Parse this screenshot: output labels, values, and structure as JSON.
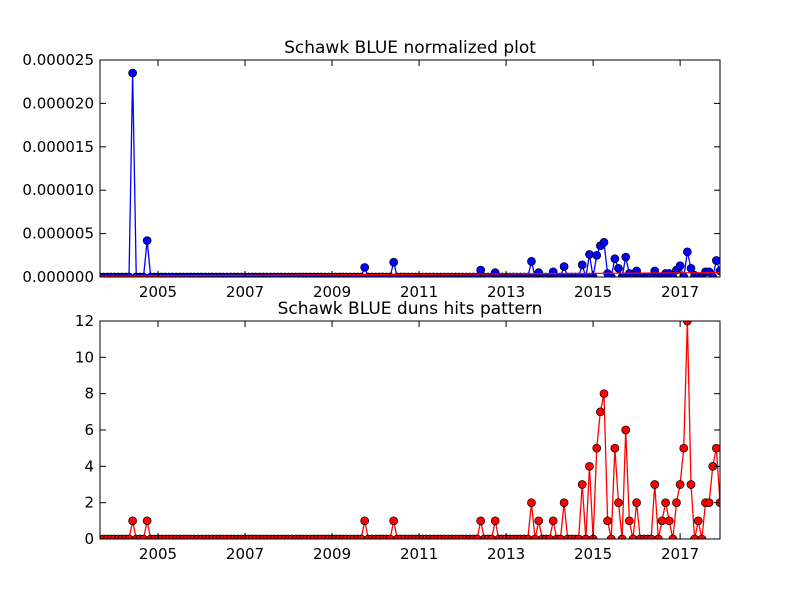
{
  "chart_data": [
    {
      "type": "line",
      "title": "Schawk BLUE normalized plot",
      "xlabel": "",
      "ylabel": "",
      "xlim": [
        "2003-09-01",
        "2017-12-01"
      ],
      "ylim": [
        0,
        2.5e-05
      ],
      "x_ticks": [
        "2005",
        "2007",
        "2009",
        "2011",
        "2013",
        "2015",
        "2017"
      ],
      "y_ticks": [
        "0.000000",
        "0.000005",
        "0.000010",
        "0.000015",
        "0.000020",
        "0.000025"
      ],
      "grid": false,
      "series": [
        {
          "style": "line-with-markers",
          "color": "#0000ff",
          "marker_color": "#0000ff",
          "points": [
            {
              "x": "2004-06-01",
              "y": 2.35e-05
            },
            {
              "x": "2004-10-01",
              "y": 4.2e-06
            },
            {
              "x": "2009-10-01",
              "y": 1.1e-06
            },
            {
              "x": "2010-06-01",
              "y": 1.7e-06
            },
            {
              "x": "2012-06-01",
              "y": 8e-07
            },
            {
              "x": "2012-10-01",
              "y": 5e-07
            },
            {
              "x": "2013-08-01",
              "y": 1.8e-06
            },
            {
              "x": "2013-10-01",
              "y": 5e-07
            },
            {
              "x": "2014-02-01",
              "y": 6e-07
            },
            {
              "x": "2014-05-01",
              "y": 1.2e-06
            },
            {
              "x": "2014-10-01",
              "y": 1.4e-06
            },
            {
              "x": "2014-12-01",
              "y": 2.6e-06
            },
            {
              "x": "2015-02-01",
              "y": 2.5e-06
            },
            {
              "x": "2015-03-01",
              "y": 3.6e-06
            },
            {
              "x": "2015-04-01",
              "y": 4e-06
            },
            {
              "x": "2015-05-01",
              "y": 4e-07
            },
            {
              "x": "2015-07-01",
              "y": 2.1e-06
            },
            {
              "x": "2015-08-01",
              "y": 1e-06
            },
            {
              "x": "2015-10-01",
              "y": 2.3e-06
            },
            {
              "x": "2015-11-01",
              "y": 4e-07
            },
            {
              "x": "2016-01-01",
              "y": 7e-07
            },
            {
              "x": "2016-06-01",
              "y": 7e-07
            },
            {
              "x": "2016-09-01",
              "y": 4e-07
            },
            {
              "x": "2016-10-01",
              "y": 4e-07
            },
            {
              "x": "2016-12-01",
              "y": 8e-07
            },
            {
              "x": "2017-01-01",
              "y": 1.3e-06
            },
            {
              "x": "2017-03-01",
              "y": 2.9e-06
            },
            {
              "x": "2017-04-01",
              "y": 1e-06
            },
            {
              "x": "2017-05-01",
              "y": 2e-07
            },
            {
              "x": "2017-08-01",
              "y": 6e-07
            },
            {
              "x": "2017-09-01",
              "y": 6e-07
            },
            {
              "x": "2017-11-01",
              "y": 1.9e-06
            },
            {
              "x": "2017-12-01",
              "y": 7e-07
            }
          ]
        },
        {
          "style": "line",
          "color": "#ff0000",
          "points": [
            {
              "x": "2003-09-01",
              "y": 1e-07
            },
            {
              "x": "2017-12-01",
              "y": 5e-07
            }
          ]
        }
      ]
    },
    {
      "type": "line",
      "title": "Schawk BLUE duns hits pattern",
      "xlabel": "",
      "ylabel": "",
      "xlim": [
        "2003-09-01",
        "2017-12-01"
      ],
      "ylim": [
        0,
        12
      ],
      "x_ticks": [
        "2005",
        "2007",
        "2009",
        "2011",
        "2013",
        "2015",
        "2017"
      ],
      "y_ticks": [
        "0",
        "2",
        "4",
        "6",
        "8",
        "10",
        "12"
      ],
      "grid": false,
      "series": [
        {
          "style": "line-with-markers",
          "color": "#ff0000",
          "marker_color": "#ff0000",
          "monthly_zero_baseline": true,
          "points": [
            {
              "x": "2004-06-01",
              "y": 1
            },
            {
              "x": "2004-10-01",
              "y": 1
            },
            {
              "x": "2009-10-01",
              "y": 1
            },
            {
              "x": "2010-06-01",
              "y": 1
            },
            {
              "x": "2012-06-01",
              "y": 1
            },
            {
              "x": "2012-10-01",
              "y": 1
            },
            {
              "x": "2013-08-01",
              "y": 2
            },
            {
              "x": "2013-10-01",
              "y": 1
            },
            {
              "x": "2014-02-01",
              "y": 1
            },
            {
              "x": "2014-05-01",
              "y": 2
            },
            {
              "x": "2014-10-01",
              "y": 3
            },
            {
              "x": "2014-12-01",
              "y": 4
            },
            {
              "x": "2015-02-01",
              "y": 5
            },
            {
              "x": "2015-03-01",
              "y": 7
            },
            {
              "x": "2015-04-01",
              "y": 8
            },
            {
              "x": "2015-05-01",
              "y": 1
            },
            {
              "x": "2015-07-01",
              "y": 5
            },
            {
              "x": "2015-08-01",
              "y": 2
            },
            {
              "x": "2015-10-01",
              "y": 6
            },
            {
              "x": "2015-11-01",
              "y": 1
            },
            {
              "x": "2016-01-01",
              "y": 2
            },
            {
              "x": "2016-06-01",
              "y": 3
            },
            {
              "x": "2016-08-01",
              "y": 1
            },
            {
              "x": "2016-09-01",
              "y": 2
            },
            {
              "x": "2016-10-01",
              "y": 1
            },
            {
              "x": "2016-12-01",
              "y": 2
            },
            {
              "x": "2017-01-01",
              "y": 3
            },
            {
              "x": "2017-02-01",
              "y": 5
            },
            {
              "x": "2017-03-01",
              "y": 12
            },
            {
              "x": "2017-04-01",
              "y": 3
            },
            {
              "x": "2017-06-01",
              "y": 1
            },
            {
              "x": "2017-08-01",
              "y": 2
            },
            {
              "x": "2017-09-01",
              "y": 2
            },
            {
              "x": "2017-10-01",
              "y": 4
            },
            {
              "x": "2017-11-01",
              "y": 5
            },
            {
              "x": "2017-12-01",
              "y": 2
            }
          ]
        }
      ]
    }
  ]
}
